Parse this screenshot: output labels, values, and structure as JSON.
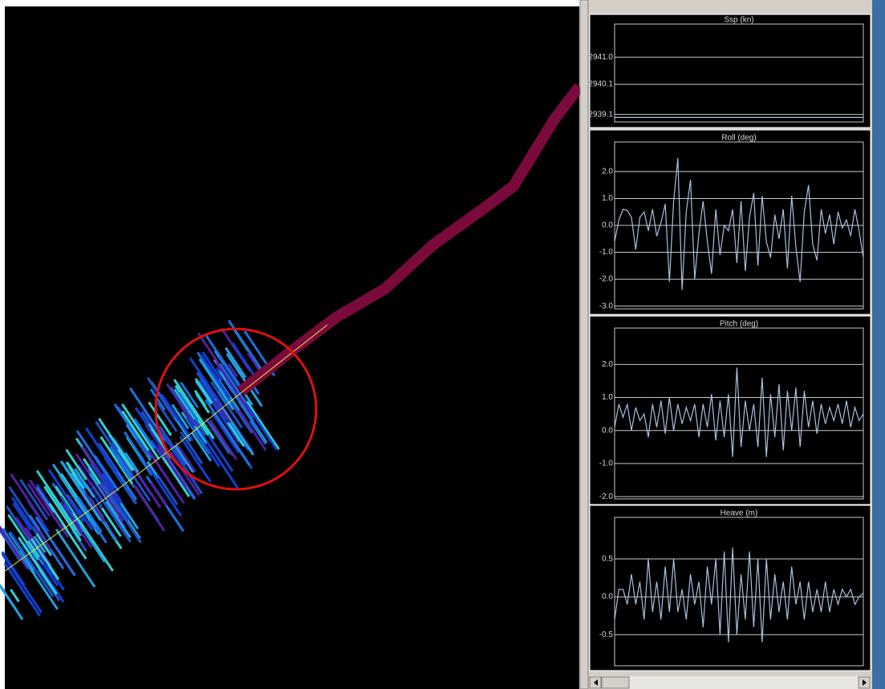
{
  "chart_data": [
    {
      "type": "line",
      "title": "Ssp (kn)",
      "ylim": [
        2938.85,
        2942.1
      ],
      "yticks": [
        {
          "value": 2941.0,
          "label": "2941.0"
        },
        {
          "value": 2940.1,
          "label": "2940.1"
        },
        {
          "value": 2939.1,
          "label": "2939.1"
        }
      ],
      "color": "#a8c0e0",
      "values": [
        2939.0,
        2939.0,
        2939.0,
        2939.0,
        2939.0,
        2939.0,
        2939.0,
        2939.0,
        2939.0,
        2939.0
      ]
    },
    {
      "type": "line",
      "title": "Roll (deg)",
      "ylim": [
        -3.1,
        3.1
      ],
      "yticks": [
        {
          "value": 2.0,
          "label": "2.0"
        },
        {
          "value": 1.0,
          "label": "1.0"
        },
        {
          "value": 0.0,
          "label": "0.0"
        },
        {
          "value": -1.0,
          "label": "-1.0"
        },
        {
          "value": -2.0,
          "label": "-2.0"
        },
        {
          "value": -3.0,
          "label": "-3.0"
        }
      ],
      "color": "#a8c0e0",
      "values": [
        -0.6,
        0.2,
        0.6,
        0.55,
        0.3,
        -0.9,
        0.3,
        0.5,
        -0.2,
        0.6,
        -0.4,
        0.1,
        0.8,
        -2.1,
        0.9,
        2.5,
        -2.4,
        0.5,
        1.7,
        -2.0,
        -0.3,
        0.9,
        -0.6,
        -1.8,
        0.6,
        -1.1,
        0.0,
        -0.2,
        0.6,
        -1.4,
        0.9,
        -1.7,
        0.3,
        1.2,
        -1.5,
        1.1,
        -0.6,
        -1.2,
        0.4,
        -0.5,
        0.6,
        -1.6,
        1.1,
        -0.8,
        -2.1,
        0.5,
        1.5,
        -0.7,
        -1.3,
        0.6,
        -0.3,
        0.4,
        -0.7,
        0.5,
        -0.1,
        0.2,
        -0.4,
        0.6,
        -0.2,
        -1.2
      ]
    },
    {
      "type": "line",
      "title": "Pitch (deg)",
      "ylim": [
        -2.07,
        3.1
      ],
      "yticks": [
        {
          "value": 2.0,
          "label": "2.0"
        },
        {
          "value": 1.0,
          "label": "1.0"
        },
        {
          "value": 0.0,
          "label": "0.0"
        },
        {
          "value": -1.0,
          "label": "-1.0"
        },
        {
          "value": -2.0,
          "label": "-2.0"
        }
      ],
      "color": "#a8c0e0",
      "values": [
        0.1,
        0.8,
        0.4,
        0.8,
        0.0,
        0.7,
        0.3,
        0.5,
        -0.2,
        0.8,
        0.1,
        0.9,
        -0.1,
        1.0,
        0.0,
        0.8,
        0.2,
        0.7,
        0.3,
        0.8,
        -0.2,
        0.8,
        0.1,
        1.1,
        -0.3,
        0.9,
        -0.2,
        1.1,
        -0.8,
        1.9,
        -0.5,
        0.9,
        0.0,
        0.8,
        -0.5,
        1.6,
        -0.8,
        1.1,
        -0.2,
        1.4,
        -0.6,
        1.2,
        0.0,
        1.3,
        -0.5,
        1.2,
        0.1,
        0.9,
        -0.1,
        0.8,
        0.2,
        0.7,
        0.3,
        0.8,
        0.2,
        0.9,
        0.1,
        0.7,
        0.3,
        0.5
      ]
    },
    {
      "type": "line",
      "title": "Heave (m)",
      "ylim": [
        -0.91,
        1.05
      ],
      "yticks": [
        0.5,
        {
          "value": 0.0,
          "label": "0.0"
        },
        -0.5
      ],
      "color": "#a8c0e0",
      "values": [
        -0.3,
        0.1,
        0.1,
        -0.1,
        0.3,
        -0.1,
        0.2,
        -0.3,
        0.5,
        -0.2,
        0.2,
        -0.3,
        0.4,
        -0.2,
        0.5,
        -0.2,
        0.1,
        -0.3,
        0.3,
        -0.1,
        0.2,
        -0.4,
        0.4,
        -0.1,
        0.5,
        -0.5,
        0.6,
        -0.6,
        0.65,
        -0.5,
        0.3,
        -0.3,
        0.6,
        -0.4,
        0.5,
        -0.6,
        0.5,
        -0.3,
        0.3,
        -0.2,
        0.2,
        -0.3,
        0.4,
        -0.1,
        0.2,
        -0.3,
        0.2,
        -0.2,
        0.1,
        -0.2,
        0.2,
        -0.2,
        0.1,
        -0.1,
        0.1,
        0.0,
        0.1,
        -0.1,
        0.0,
        0.05
      ]
    }
  ]
}
